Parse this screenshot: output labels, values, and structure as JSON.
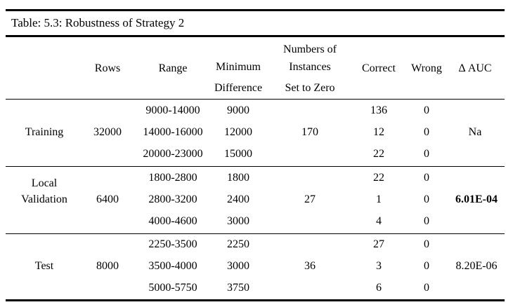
{
  "table": {
    "caption": "Table: 5.3: Robustness of Strategy 2",
    "headers": {
      "rows": "Rows",
      "range": "Range",
      "min_diff_1": "Minimum",
      "min_diff_2": "Difference",
      "instances_1": "Numbers of",
      "instances_2": "Instances",
      "instances_3": "Set to Zero",
      "correct": "Correct",
      "wrong": "Wrong",
      "auc": "Δ AUC"
    },
    "groups": [
      {
        "label_lines": [
          "Training"
        ],
        "rows": "32000",
        "instances": "170",
        "auc": "Na",
        "auc_bold": false,
        "entries": [
          {
            "range": "9000-14000",
            "min_diff": "9000",
            "correct": "136",
            "wrong": "0"
          },
          {
            "range": "14000-16000",
            "min_diff": "12000",
            "correct": "12",
            "wrong": "0"
          },
          {
            "range": "20000-23000",
            "min_diff": "15000",
            "correct": "22",
            "wrong": "0"
          }
        ]
      },
      {
        "label_lines": [
          "Local",
          "Validation"
        ],
        "rows": "6400",
        "instances": "27",
        "auc": "6.01E-04",
        "auc_bold": true,
        "entries": [
          {
            "range": "1800-2800",
            "min_diff": "1800",
            "correct": "22",
            "wrong": "0"
          },
          {
            "range": "2800-3200",
            "min_diff": "2400",
            "correct": "1",
            "wrong": "0"
          },
          {
            "range": "4000-4600",
            "min_diff": "3000",
            "correct": "4",
            "wrong": "0"
          }
        ]
      },
      {
        "label_lines": [
          "Test"
        ],
        "rows": "8000",
        "instances": "36",
        "auc": "8.20E-06",
        "auc_bold": false,
        "entries": [
          {
            "range": "2250-3500",
            "min_diff": "2250",
            "correct": "27",
            "wrong": "0"
          },
          {
            "range": "3500-4000",
            "min_diff": "3000",
            "correct": "3",
            "wrong": "0"
          },
          {
            "range": "5000-5750",
            "min_diff": "3750",
            "correct": "6",
            "wrong": "0"
          }
        ]
      }
    ]
  }
}
